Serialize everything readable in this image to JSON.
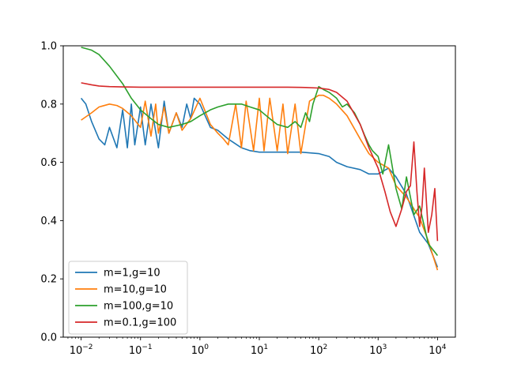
{
  "chart_data": {
    "type": "line",
    "title": "",
    "xlabel": "",
    "ylabel": "",
    "xscale": "log",
    "xlim": [
      0.005,
      20000
    ],
    "ylim": [
      0.0,
      1.0
    ],
    "grid": false,
    "legend_position": "lower-left",
    "x_ticks": [
      {
        "value": 0.01,
        "base": "10",
        "exp": "−2"
      },
      {
        "value": 0.1,
        "base": "10",
        "exp": "−1"
      },
      {
        "value": 1,
        "base": "10",
        "exp": "0"
      },
      {
        "value": 10,
        "base": "10",
        "exp": "1"
      },
      {
        "value": 100,
        "base": "10",
        "exp": "2"
      },
      {
        "value": 1000,
        "base": "10",
        "exp": "3"
      },
      {
        "value": 10000,
        "base": "10",
        "exp": "4"
      }
    ],
    "y_ticks": [
      {
        "value": 0.0,
        "label": "0.0"
      },
      {
        "value": 0.2,
        "label": "0.2"
      },
      {
        "value": 0.4,
        "label": "0.4"
      },
      {
        "value": 0.6,
        "label": "0.6"
      },
      {
        "value": 0.8,
        "label": "0.8"
      },
      {
        "value": 1.0,
        "label": "1.0"
      }
    ],
    "series": [
      {
        "name": "m=1,g=10",
        "color": "#1f77b4",
        "x": [
          0.01,
          0.012,
          0.015,
          0.02,
          0.025,
          0.03,
          0.04,
          0.05,
          0.06,
          0.07,
          0.08,
          0.1,
          0.12,
          0.15,
          0.2,
          0.25,
          0.3,
          0.4,
          0.5,
          0.6,
          0.7,
          0.8,
          1.0,
          1.5,
          2,
          3,
          5,
          7,
          10,
          20,
          50,
          100,
          150,
          200,
          300,
          500,
          700,
          1000,
          1500,
          2000,
          3000,
          5000,
          7000,
          10000
        ],
        "y": [
          0.82,
          0.8,
          0.74,
          0.68,
          0.66,
          0.72,
          0.65,
          0.78,
          0.65,
          0.8,
          0.66,
          0.79,
          0.66,
          0.8,
          0.65,
          0.81,
          0.7,
          0.77,
          0.72,
          0.8,
          0.75,
          0.82,
          0.8,
          0.72,
          0.71,
          0.68,
          0.65,
          0.64,
          0.635,
          0.635,
          0.635,
          0.63,
          0.62,
          0.6,
          0.585,
          0.575,
          0.56,
          0.56,
          0.58,
          0.55,
          0.49,
          0.36,
          0.32,
          0.24
        ]
      },
      {
        "name": "m=10,g=10",
        "color": "#ff7f0e",
        "x": [
          0.01,
          0.015,
          0.02,
          0.03,
          0.04,
          0.05,
          0.07,
          0.1,
          0.12,
          0.15,
          0.18,
          0.2,
          0.25,
          0.3,
          0.4,
          0.5,
          0.7,
          1.0,
          1.2,
          1.5,
          2,
          2.5,
          3,
          4,
          5,
          6,
          8,
          10,
          12,
          15,
          20,
          25,
          30,
          40,
          50,
          70,
          100,
          120,
          150,
          200,
          300,
          500,
          700,
          1000,
          1500,
          2000,
          3000,
          5000,
          7000,
          10000
        ],
        "y": [
          0.745,
          0.77,
          0.79,
          0.8,
          0.795,
          0.785,
          0.76,
          0.72,
          0.81,
          0.69,
          0.8,
          0.7,
          0.79,
          0.7,
          0.77,
          0.71,
          0.75,
          0.82,
          0.78,
          0.73,
          0.7,
          0.68,
          0.66,
          0.8,
          0.65,
          0.81,
          0.64,
          0.82,
          0.64,
          0.82,
          0.64,
          0.8,
          0.63,
          0.8,
          0.63,
          0.81,
          0.83,
          0.83,
          0.82,
          0.8,
          0.76,
          0.68,
          0.63,
          0.6,
          0.58,
          0.52,
          0.48,
          0.41,
          0.33,
          0.23
        ]
      },
      {
        "name": "m=100,g=10",
        "color": "#2ca02c",
        "x": [
          0.01,
          0.015,
          0.02,
          0.03,
          0.05,
          0.07,
          0.1,
          0.15,
          0.2,
          0.3,
          0.5,
          0.7,
          1.0,
          1.5,
          2,
          3,
          5,
          7,
          10,
          15,
          20,
          30,
          40,
          50,
          60,
          70,
          80,
          100,
          120,
          150,
          200,
          250,
          300,
          400,
          500,
          600,
          700,
          800,
          1000,
          1200,
          1500,
          2000,
          2500,
          3000,
          4000,
          5000,
          7000,
          10000
        ],
        "y": [
          0.995,
          0.985,
          0.97,
          0.93,
          0.87,
          0.82,
          0.78,
          0.75,
          0.73,
          0.72,
          0.73,
          0.74,
          0.76,
          0.78,
          0.79,
          0.8,
          0.8,
          0.79,
          0.78,
          0.75,
          0.73,
          0.72,
          0.74,
          0.72,
          0.77,
          0.74,
          0.8,
          0.86,
          0.85,
          0.84,
          0.82,
          0.79,
          0.8,
          0.77,
          0.73,
          0.69,
          0.66,
          0.64,
          0.62,
          0.56,
          0.66,
          0.51,
          0.44,
          0.55,
          0.42,
          0.45,
          0.32,
          0.28
        ]
      },
      {
        "name": "m=0.1,g=100",
        "color": "#d62728",
        "x": [
          0.01,
          0.015,
          0.02,
          0.03,
          0.05,
          0.1,
          1,
          10,
          30,
          60,
          100,
          150,
          200,
          300,
          500,
          700,
          1000,
          1300,
          1600,
          2000,
          2500,
          3000,
          3500,
          4000,
          4500,
          5000,
          5500,
          6000,
          7000,
          8000,
          9000,
          10000
        ],
        "y": [
          0.873,
          0.866,
          0.862,
          0.86,
          0.859,
          0.858,
          0.858,
          0.858,
          0.858,
          0.857,
          0.855,
          0.85,
          0.84,
          0.81,
          0.73,
          0.65,
          0.58,
          0.5,
          0.43,
          0.38,
          0.44,
          0.5,
          0.52,
          0.67,
          0.5,
          0.38,
          0.45,
          0.58,
          0.36,
          0.42,
          0.51,
          0.33
        ]
      }
    ]
  }
}
